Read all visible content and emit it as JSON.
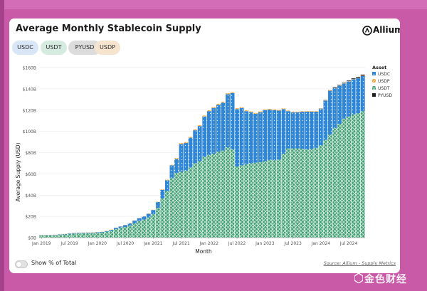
{
  "page": {
    "title": "Average Monthly Stablecoin Supply",
    "logo_text": "Allium",
    "filters": [
      "USDC",
      "USDT",
      "PYUSD",
      "USDP"
    ],
    "toggle_label": "Show % of Total",
    "source": "Source: Allium - Supply Metrics",
    "watermark": "金色财经"
  },
  "colors": {
    "USDC": "#2f86d6",
    "USDT": "#3e9c72",
    "USDP": "#f2a63b",
    "PYUSD": "#222222"
  },
  "chart_data": {
    "type": "bar",
    "stacked": true,
    "title": "Average Monthly Stablecoin Supply",
    "xlabel": "Month",
    "ylabel": "Average Supply (USD)",
    "ylim": [
      0,
      160
    ],
    "yticks": [
      0,
      20,
      40,
      60,
      80,
      100,
      120,
      140,
      160
    ],
    "ytick_labels": [
      "$0B",
      "$20B",
      "$40B",
      "$60B",
      "$80B",
      "$100B",
      "$120B",
      "$140B",
      "$160B"
    ],
    "xticks": [
      {
        "label": "Jan 2019",
        "index": 0
      },
      {
        "label": "Jul 2019",
        "index": 6
      },
      {
        "label": "Jan 2020",
        "index": 12
      },
      {
        "label": "Jul 2020",
        "index": 18
      },
      {
        "label": "Jan 2021",
        "index": 24
      },
      {
        "label": "Jul 2021",
        "index": 30
      },
      {
        "label": "Jan 2022",
        "index": 36
      },
      {
        "label": "Jul 2022",
        "index": 42
      },
      {
        "label": "Jan 2023",
        "index": 48
      },
      {
        "label": "Jul 2023",
        "index": 54
      },
      {
        "label": "Jan 2024",
        "index": 60
      },
      {
        "label": "Jul 2024",
        "index": 66
      }
    ],
    "legend_title": "Asset",
    "legend": [
      "USDC",
      "USDP",
      "USDT",
      "PYUSD"
    ],
    "legend_position": "right",
    "categories": [
      "2019-01",
      "2019-02",
      "2019-03",
      "2019-04",
      "2019-05",
      "2019-06",
      "2019-07",
      "2019-08",
      "2019-09",
      "2019-10",
      "2019-11",
      "2019-12",
      "2020-01",
      "2020-02",
      "2020-03",
      "2020-04",
      "2020-05",
      "2020-06",
      "2020-07",
      "2020-08",
      "2020-09",
      "2020-10",
      "2020-11",
      "2020-12",
      "2021-01",
      "2021-02",
      "2021-03",
      "2021-04",
      "2021-05",
      "2021-06",
      "2021-07",
      "2021-08",
      "2021-09",
      "2021-10",
      "2021-11",
      "2021-12",
      "2022-01",
      "2022-02",
      "2022-03",
      "2022-04",
      "2022-05",
      "2022-06",
      "2022-07",
      "2022-08",
      "2022-09",
      "2022-10",
      "2022-11",
      "2022-12",
      "2023-01",
      "2023-02",
      "2023-03",
      "2023-04",
      "2023-05",
      "2023-06",
      "2023-07",
      "2023-08",
      "2023-09",
      "2023-10",
      "2023-11",
      "2023-12",
      "2024-01",
      "2024-02",
      "2024-03",
      "2024-04",
      "2024-05",
      "2024-06",
      "2024-07",
      "2024-08",
      "2024-09",
      "2024-10"
    ],
    "series": [
      {
        "name": "USDT",
        "values": [
          2.0,
          2.0,
          2.1,
          2.3,
          2.6,
          3.0,
          3.4,
          3.8,
          4.0,
          4.1,
          4.2,
          4.3,
          4.5,
          4.8,
          5.5,
          6.5,
          8.0,
          9.0,
          10.0,
          11.5,
          13.5,
          15.5,
          17.0,
          19.0,
          22.0,
          28.0,
          37.0,
          44.0,
          56.0,
          61.0,
          62.0,
          63.0,
          66.0,
          70.0,
          72.0,
          76.0,
          78.0,
          79.0,
          81.0,
          82.0,
          85.0,
          83.0,
          67.0,
          68.0,
          69.0,
          70.0,
          70.5,
          71.0,
          72.0,
          73.0,
          73.0,
          73.5,
          79.0,
          84.0,
          84.0,
          84.0,
          83.5,
          83.0,
          83.5,
          84.5,
          87.0,
          92.0,
          97.0,
          103.0,
          107.0,
          112.0,
          114.0,
          116.0,
          117.0,
          119.0
        ]
      },
      {
        "name": "USDC",
        "values": [
          0.3,
          0.3,
          0.3,
          0.3,
          0.4,
          0.4,
          0.5,
          0.5,
          0.5,
          0.5,
          0.5,
          0.5,
          0.5,
          0.6,
          0.7,
          0.9,
          1.2,
          1.5,
          1.8,
          2.0,
          2.5,
          2.8,
          3.0,
          3.4,
          4.0,
          5.5,
          8.0,
          10.0,
          12.0,
          13.0,
          26.0,
          26.0,
          28.0,
          31.0,
          33.0,
          38.0,
          41.0,
          43.0,
          44.0,
          45.0,
          50.0,
          53.0,
          54.0,
          54.0,
          50.0,
          48.0,
          46.0,
          47.0,
          48.0,
          47.5,
          47.0,
          46.0,
          42.0,
          35.0,
          34.0,
          34.0,
          35.0,
          35.5,
          35.0,
          34.0,
          34.0,
          37.0,
          41.0,
          38.0,
          36.0,
          33.0,
          33.0,
          33.0,
          33.0,
          33.0
        ]
      },
      {
        "name": "USDP",
        "values": [
          0.2,
          0.2,
          0.2,
          0.2,
          0.2,
          0.2,
          0.2,
          0.2,
          0.2,
          0.2,
          0.2,
          0.2,
          0.2,
          0.2,
          0.2,
          0.2,
          0.2,
          0.2,
          0.2,
          0.2,
          0.2,
          0.2,
          0.2,
          0.3,
          0.3,
          0.3,
          0.4,
          0.5,
          0.6,
          0.8,
          0.9,
          0.9,
          0.9,
          0.9,
          0.9,
          0.9,
          0.9,
          0.9,
          0.9,
          0.9,
          0.9,
          0.9,
          0.9,
          0.8,
          0.8,
          0.8,
          0.8,
          0.8,
          0.7,
          0.7,
          0.7,
          0.7,
          0.6,
          0.6,
          0.6,
          0.6,
          0.5,
          0.5,
          0.5,
          0.5,
          0.4,
          0.4,
          0.4,
          0.4,
          0.4,
          0.4,
          0.4,
          0.4,
          0.4,
          0.4
        ]
      },
      {
        "name": "PYUSD",
        "values": [
          0,
          0,
          0,
          0,
          0,
          0,
          0,
          0,
          0,
          0,
          0,
          0,
          0,
          0,
          0,
          0,
          0,
          0,
          0,
          0,
          0,
          0,
          0,
          0,
          0,
          0,
          0,
          0,
          0,
          0,
          0,
          0,
          0,
          0,
          0,
          0,
          0,
          0,
          0,
          0,
          0,
          0,
          0,
          0,
          0,
          0,
          0,
          0,
          0,
          0,
          0,
          0,
          0,
          0,
          0,
          0,
          0,
          0,
          0,
          0,
          0.1,
          0.2,
          0.3,
          0.4,
          0.4,
          0.4,
          0.5,
          0.6,
          0.8,
          1.0
        ]
      }
    ]
  }
}
